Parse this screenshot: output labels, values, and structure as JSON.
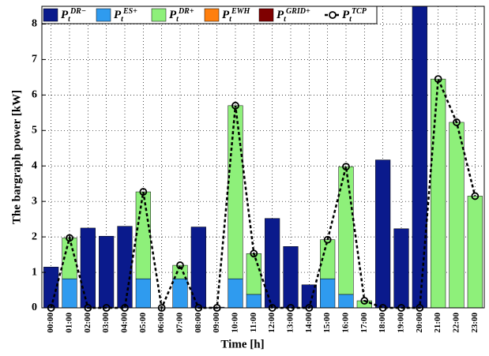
{
  "chart_data": {
    "type": "bar",
    "xlabel": "Time [h]",
    "ylabel": "The bargraph power [kW]",
    "categories": [
      "00:00",
      "01:00",
      "02:00",
      "03:00",
      "04:00",
      "05:00",
      "06:00",
      "07:00",
      "08:00",
      "09:00",
      "10:00",
      "11:00",
      "12:00",
      "13:00",
      "14:00",
      "15:00",
      "16:00",
      "17:00",
      "18:00",
      "19:00",
      "20:00",
      "21:00",
      "22:00",
      "23:00"
    ],
    "stacked": true,
    "series": [
      {
        "name": "P_t^{DR−}",
        "color": "#0a1a8c",
        "values": [
          1.15,
          0,
          2.25,
          2.02,
          2.3,
          0,
          0,
          0,
          2.28,
          0.02,
          0,
          0,
          2.52,
          1.73,
          0.65,
          0,
          0,
          0,
          4.17,
          2.23,
          8.5,
          0,
          0,
          0
        ]
      },
      {
        "name": "P_t^{ES+}",
        "color": "#2f9bef",
        "values": [
          0,
          0.82,
          0,
          0,
          0,
          0.82,
          0,
          0.82,
          0,
          0,
          0.82,
          0.38,
          0,
          0,
          0,
          0.82,
          0.38,
          0,
          0,
          0,
          0,
          0,
          0,
          0
        ]
      },
      {
        "name": "P_t^{DR+}",
        "color": "#8ef07a",
        "values": [
          0,
          1.15,
          0,
          0,
          0,
          2.45,
          0,
          0.38,
          0,
          0,
          4.88,
          1.15,
          0,
          0,
          0,
          1.1,
          3.6,
          0.2,
          0,
          0,
          0,
          6.45,
          5.23,
          3.15
        ]
      },
      {
        "name": "P_t^{EWH}",
        "color": "#ff7f0e",
        "values": [
          0,
          0,
          0,
          0,
          0,
          0,
          0,
          0,
          0,
          0,
          0,
          0,
          0,
          0,
          0,
          0,
          0,
          0,
          0,
          0,
          0,
          0,
          0,
          0
        ]
      },
      {
        "name": "P_t^{GRID+}",
        "color": "#7f0000",
        "values": [
          0,
          0,
          0,
          0,
          0,
          0,
          0,
          0,
          0,
          0,
          0,
          0,
          0,
          0,
          0,
          0,
          0,
          0,
          0,
          0,
          0,
          0,
          0,
          0
        ]
      },
      {
        "name": "P_t^{TCP}",
        "type": "line",
        "color": "#000000",
        "values": [
          0,
          1.97,
          0,
          0,
          0,
          3.27,
          0,
          1.2,
          0,
          0,
          5.7,
          1.53,
          0,
          0,
          0,
          1.92,
          3.98,
          0.2,
          0,
          0,
          0,
          6.45,
          5.23,
          3.15
        ]
      }
    ],
    "ylim": [
      0,
      8.5
    ],
    "yticks": [
      0,
      1,
      2,
      3,
      4,
      5,
      6,
      7,
      8
    ],
    "grid": true,
    "legend": "top-left"
  }
}
